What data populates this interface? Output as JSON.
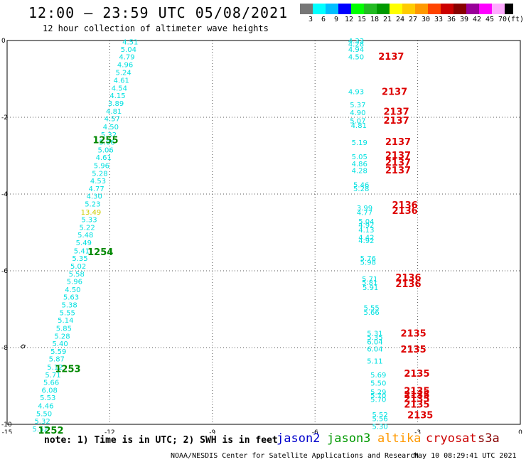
{
  "header": {
    "title": "12:00 — 23:59 UTC 05/08/2021",
    "subtitle": "12 hour collection of altimeter wave heights"
  },
  "colorbar": {
    "colors": [
      "#777777",
      "#00ffff",
      "#00bfff",
      "#0000ff",
      "#00ff00",
      "#22bb22",
      "#009900",
      "#ffff00",
      "#ffcc00",
      "#ff9900",
      "#ff4400",
      "#cc0000",
      "#880000",
      "#990099",
      "#ff00ff",
      "#ffaaff",
      "#000000"
    ],
    "labels": [
      "3",
      "6",
      "9",
      "12",
      "15",
      "18",
      "21",
      "24",
      "27",
      "30",
      "33",
      "36",
      "39",
      "42",
      "45",
      "70",
      "(ft)"
    ]
  },
  "axes": {
    "x_ticks": [
      -15,
      -12,
      -9,
      -6,
      -3,
      0
    ],
    "y_ticks": [
      0,
      -2,
      -4,
      -6,
      -8,
      -10
    ],
    "x_range": [
      -15,
      0
    ],
    "y_range": [
      -10,
      0
    ],
    "grid": true
  },
  "swh_colors": {
    "cyan": "#00e0e0",
    "yellow": "#cccc00"
  },
  "pass_colors": {
    "red": "#dd0000",
    "green": "#008800"
  },
  "left_track": [
    {
      "lon": -11.4,
      "lat": -0.03,
      "label": "4.51",
      "color": "cyan"
    },
    {
      "lon": -11.45,
      "lat": -0.22,
      "label": "5.04",
      "color": "cyan"
    },
    {
      "lon": -11.5,
      "lat": -0.42,
      "label": "4.79",
      "color": "cyan"
    },
    {
      "lon": -11.55,
      "lat": -0.62,
      "label": "4.96",
      "color": "cyan"
    },
    {
      "lon": -11.6,
      "lat": -0.82,
      "label": "5.24",
      "color": "cyan"
    },
    {
      "lon": -11.66,
      "lat": -1.03,
      "label": "4.61",
      "color": "cyan"
    },
    {
      "lon": -11.72,
      "lat": -1.23,
      "label": "4.54",
      "color": "cyan"
    },
    {
      "lon": -11.77,
      "lat": -1.43,
      "label": "4.15",
      "color": "cyan"
    },
    {
      "lon": -11.82,
      "lat": -1.63,
      "label": "3.89",
      "color": "cyan"
    },
    {
      "lon": -11.88,
      "lat": -1.83,
      "label": "4.81",
      "color": "cyan"
    },
    {
      "lon": -11.93,
      "lat": -2.03,
      "label": "4.57",
      "color": "cyan"
    },
    {
      "lon": -11.97,
      "lat": -2.24,
      "label": "4.50",
      "color": "cyan"
    },
    {
      "lon": -12.03,
      "lat": -2.44,
      "label": "5.32",
      "color": "cyan"
    },
    {
      "lon": -12.08,
      "lat": -2.64,
      "label": "5.06",
      "color": "cyan"
    },
    {
      "lon": -12.12,
      "lat": -2.84,
      "label": "5.06",
      "color": "cyan"
    },
    {
      "lon": -12.18,
      "lat": -3.04,
      "label": "4.61",
      "color": "cyan"
    },
    {
      "lon": -12.24,
      "lat": -3.25,
      "label": "5.96",
      "color": "cyan"
    },
    {
      "lon": -12.29,
      "lat": -3.45,
      "label": "5.28",
      "color": "cyan"
    },
    {
      "lon": -12.34,
      "lat": -3.65,
      "label": "4.53",
      "color": "cyan"
    },
    {
      "lon": -12.39,
      "lat": -3.85,
      "label": "4.77",
      "color": "cyan"
    },
    {
      "lon": -12.45,
      "lat": -4.05,
      "label": "4.30",
      "color": "cyan"
    },
    {
      "lon": -12.5,
      "lat": -4.25,
      "label": "5.23",
      "color": "cyan"
    },
    {
      "lon": -12.55,
      "lat": -4.46,
      "label": "13.49",
      "color": "yellow"
    },
    {
      "lon": -12.6,
      "lat": -4.66,
      "label": "5.33",
      "color": "cyan"
    },
    {
      "lon": -12.66,
      "lat": -4.86,
      "label": "5.22",
      "color": "cyan"
    },
    {
      "lon": -12.71,
      "lat": -5.06,
      "label": "5.48",
      "color": "cyan"
    },
    {
      "lon": -12.76,
      "lat": -5.26,
      "label": "5.49",
      "color": "cyan"
    },
    {
      "lon": -12.82,
      "lat": -5.47,
      "label": "5.41",
      "color": "cyan"
    },
    {
      "lon": -12.87,
      "lat": -5.67,
      "label": "5.35",
      "color": "cyan"
    },
    {
      "lon": -12.92,
      "lat": -5.87,
      "label": "5.02",
      "color": "cyan"
    },
    {
      "lon": -12.97,
      "lat": -6.07,
      "label": "5.58",
      "color": "cyan"
    },
    {
      "lon": -13.03,
      "lat": -6.27,
      "label": "5.96",
      "color": "cyan"
    },
    {
      "lon": -13.08,
      "lat": -6.48,
      "label": "4.50",
      "color": "cyan"
    },
    {
      "lon": -13.13,
      "lat": -6.68,
      "label": "5.63",
      "color": "cyan"
    },
    {
      "lon": -13.18,
      "lat": -6.88,
      "label": "5.38",
      "color": "cyan"
    },
    {
      "lon": -13.24,
      "lat": -7.08,
      "label": "5.55",
      "color": "cyan"
    },
    {
      "lon": -13.29,
      "lat": -7.28,
      "label": "5.14",
      "color": "cyan"
    },
    {
      "lon": -13.34,
      "lat": -7.49,
      "label": "5.85",
      "color": "cyan"
    },
    {
      "lon": -13.39,
      "lat": -7.69,
      "label": "5.28",
      "color": "cyan"
    },
    {
      "lon": -13.45,
      "lat": -7.89,
      "label": "5.40",
      "color": "cyan"
    },
    {
      "lon": -13.5,
      "lat": -8.09,
      "label": "5.59",
      "color": "cyan"
    },
    {
      "lon": -13.55,
      "lat": -8.29,
      "label": "5.87",
      "color": "cyan"
    },
    {
      "lon": -13.6,
      "lat": -8.5,
      "label": "5.12",
      "color": "cyan"
    },
    {
      "lon": -13.66,
      "lat": -8.7,
      "label": "5.71",
      "color": "cyan"
    },
    {
      "lon": -13.71,
      "lat": -8.9,
      "label": "5.66",
      "color": "cyan"
    },
    {
      "lon": -13.76,
      "lat": -9.1,
      "label": "6.08",
      "color": "cyan"
    },
    {
      "lon": -13.81,
      "lat": -9.3,
      "label": "5.53",
      "color": "cyan"
    },
    {
      "lon": -13.87,
      "lat": -9.51,
      "label": "4.46",
      "color": "cyan"
    },
    {
      "lon": -13.92,
      "lat": -9.71,
      "label": "5.50",
      "color": "cyan"
    },
    {
      "lon": -13.97,
      "lat": -9.91,
      "label": "5.32",
      "color": "cyan"
    },
    {
      "lon": -14.03,
      "lat": -10.11,
      "label": "5.52",
      "color": "cyan"
    }
  ],
  "right_track": [
    {
      "lon": -4.8,
      "lat": 0.0,
      "label": "4.33",
      "color": "cyan"
    },
    {
      "lon": -4.8,
      "lat": -0.08,
      "label": "4.28",
      "color": "cyan"
    },
    {
      "lon": -4.8,
      "lat": -0.22,
      "label": "4.94",
      "color": "cyan"
    },
    {
      "lon": -4.8,
      "lat": -0.42,
      "label": "4.50",
      "color": "cyan"
    },
    {
      "lon": -4.8,
      "lat": -1.32,
      "label": "4.93",
      "color": "cyan"
    },
    {
      "lon": -4.75,
      "lat": -1.67,
      "label": "5.37",
      "color": "cyan"
    },
    {
      "lon": -4.75,
      "lat": -1.87,
      "label": "4.90",
      "color": "cyan"
    },
    {
      "lon": -4.75,
      "lat": -2.08,
      "label": "5.07",
      "color": "cyan"
    },
    {
      "lon": -4.72,
      "lat": -2.2,
      "label": "4.81",
      "color": "cyan"
    },
    {
      "lon": -4.7,
      "lat": -2.65,
      "label": "5.19",
      "color": "cyan"
    },
    {
      "lon": -4.7,
      "lat": -3.02,
      "label": "5.05",
      "color": "cyan"
    },
    {
      "lon": -4.7,
      "lat": -3.2,
      "label": "4.86",
      "color": "cyan"
    },
    {
      "lon": -4.7,
      "lat": -3.38,
      "label": "4.28",
      "color": "cyan"
    },
    {
      "lon": -4.65,
      "lat": -3.75,
      "label": "5.46",
      "color": "cyan"
    },
    {
      "lon": -4.65,
      "lat": -3.85,
      "label": "5.28",
      "color": "cyan"
    },
    {
      "lon": -4.55,
      "lat": -4.35,
      "label": "3.99",
      "color": "cyan"
    },
    {
      "lon": -4.55,
      "lat": -4.47,
      "label": "4.77",
      "color": "cyan"
    },
    {
      "lon": -4.5,
      "lat": -4.7,
      "label": "5.04",
      "color": "cyan"
    },
    {
      "lon": -4.5,
      "lat": -4.8,
      "label": "4.92",
      "color": "cyan"
    },
    {
      "lon": -4.5,
      "lat": -4.93,
      "label": "4.13",
      "color": "cyan"
    },
    {
      "lon": -4.5,
      "lat": -5.12,
      "label": "4.42",
      "color": "cyan"
    },
    {
      "lon": -4.5,
      "lat": -5.2,
      "label": "4.92",
      "color": "cyan"
    },
    {
      "lon": -4.45,
      "lat": -5.67,
      "label": "5.76",
      "color": "cyan"
    },
    {
      "lon": -4.45,
      "lat": -5.77,
      "label": "5.98",
      "color": "cyan"
    },
    {
      "lon": -4.4,
      "lat": -6.2,
      "label": "5.71",
      "color": "cyan"
    },
    {
      "lon": -4.4,
      "lat": -6.3,
      "label": "5.81",
      "color": "cyan"
    },
    {
      "lon": -4.38,
      "lat": -6.43,
      "label": "5.91",
      "color": "cyan"
    },
    {
      "lon": -4.35,
      "lat": -6.95,
      "label": "5.55",
      "color": "cyan"
    },
    {
      "lon": -4.35,
      "lat": -7.07,
      "label": "5.66",
      "color": "cyan"
    },
    {
      "lon": -4.25,
      "lat": -7.62,
      "label": "5.31",
      "color": "cyan"
    },
    {
      "lon": -4.25,
      "lat": -7.72,
      "label": "5.35",
      "color": "cyan"
    },
    {
      "lon": -4.25,
      "lat": -7.84,
      "label": "6.04",
      "color": "cyan"
    },
    {
      "lon": -4.25,
      "lat": -8.03,
      "label": "6.04",
      "color": "cyan"
    },
    {
      "lon": -4.25,
      "lat": -8.34,
      "label": "5.11",
      "color": "cyan"
    },
    {
      "lon": -4.15,
      "lat": -8.7,
      "label": "5.69",
      "color": "cyan"
    },
    {
      "lon": -4.15,
      "lat": -8.92,
      "label": "5.50",
      "color": "cyan"
    },
    {
      "lon": -4.15,
      "lat": -9.15,
      "label": "5.29",
      "color": "cyan"
    },
    {
      "lon": -4.15,
      "lat": -9.24,
      "label": "5.70",
      "color": "cyan"
    },
    {
      "lon": -4.15,
      "lat": -9.34,
      "label": "5.70",
      "color": "cyan"
    },
    {
      "lon": -4.1,
      "lat": -9.74,
      "label": "5.52",
      "color": "cyan"
    },
    {
      "lon": -4.1,
      "lat": -9.84,
      "label": "5.56",
      "color": "cyan"
    },
    {
      "lon": -4.1,
      "lat": -10.05,
      "label": "5.30",
      "color": "cyan"
    }
  ],
  "pass_labels": [
    {
      "lon": -12.5,
      "lat": -2.58,
      "label": "1255",
      "color": "green"
    },
    {
      "lon": -12.65,
      "lat": -5.5,
      "label": "1254",
      "color": "green"
    },
    {
      "lon": -13.6,
      "lat": -8.55,
      "label": "1253",
      "color": "green"
    },
    {
      "lon": -14.1,
      "lat": -10.15,
      "label": "1252",
      "color": "green"
    },
    {
      "lon": -4.15,
      "lat": -0.41,
      "label": "2137",
      "color": "red"
    },
    {
      "lon": -4.05,
      "lat": -1.32,
      "label": "2137",
      "color": "red"
    },
    {
      "lon": -4.0,
      "lat": -1.84,
      "label": "2137",
      "color": "red"
    },
    {
      "lon": -4.0,
      "lat": -2.07,
      "label": "2137",
      "color": "red"
    },
    {
      "lon": -3.95,
      "lat": -2.63,
      "label": "2137",
      "color": "red"
    },
    {
      "lon": -3.95,
      "lat": -2.98,
      "label": "2137",
      "color": "red"
    },
    {
      "lon": -3.95,
      "lat": -3.17,
      "label": "2137",
      "color": "red"
    },
    {
      "lon": -3.95,
      "lat": -3.37,
      "label": "2137",
      "color": "red"
    },
    {
      "lon": -3.75,
      "lat": -4.28,
      "label": "2136",
      "color": "red"
    },
    {
      "lon": -3.75,
      "lat": -4.43,
      "label": "2136",
      "color": "red"
    },
    {
      "lon": -3.65,
      "lat": -6.17,
      "label": "2136",
      "color": "red"
    },
    {
      "lon": -3.65,
      "lat": -6.33,
      "label": "2136",
      "color": "red"
    },
    {
      "lon": -3.5,
      "lat": -7.62,
      "label": "2135",
      "color": "red"
    },
    {
      "lon": -3.5,
      "lat": -8.04,
      "label": "2135",
      "color": "red"
    },
    {
      "lon": -3.4,
      "lat": -8.67,
      "label": "2135",
      "color": "red"
    },
    {
      "lon": -3.4,
      "lat": -9.12,
      "label": "2135",
      "color": "red"
    },
    {
      "lon": -3.4,
      "lat": -9.22,
      "label": "2135",
      "color": "red"
    },
    {
      "lon": -3.4,
      "lat": -9.32,
      "label": "2135",
      "color": "red"
    },
    {
      "lon": -3.4,
      "lat": -9.47,
      "label": "2135",
      "color": "red"
    },
    {
      "lon": -3.3,
      "lat": -9.75,
      "label": "2135",
      "color": "red"
    }
  ],
  "coast_marks": [
    {
      "lon": -14.6,
      "lat": -7.98
    }
  ],
  "footer": {
    "note": "note: 1) Time is in UTC; 2) SWH is in feet",
    "satellites": [
      {
        "name": "jason2",
        "color": "#0000cc"
      },
      {
        "name": "jason3",
        "color": "#009900"
      },
      {
        "name": "altika",
        "color": "#ff9900"
      },
      {
        "name": "cryosat",
        "color": "#cc0000"
      },
      {
        "name": "s3a",
        "color": "#880000"
      }
    ],
    "credit": "NOAA/NESDIS Center for Satellite Applications and Research",
    "timestamp": "May 10 08:29:41 UTC 2021"
  }
}
